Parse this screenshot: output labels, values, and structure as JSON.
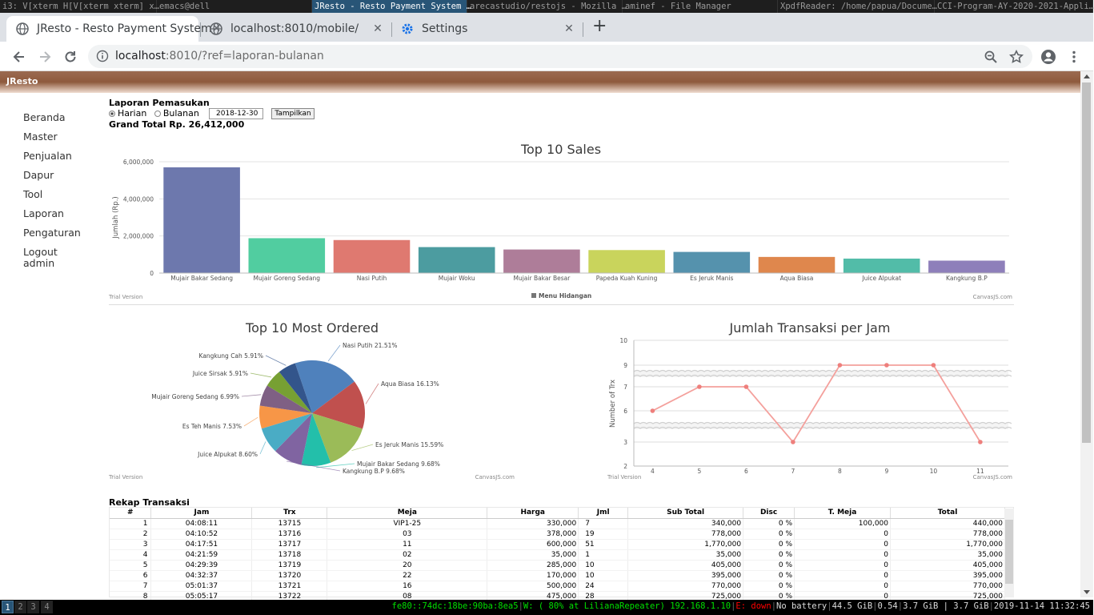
{
  "i3_windows": [
    {
      "title": "i3: V[xterm H[V[xterm xterm] x…",
      "active": false
    },
    {
      "title": "emacs@dell",
      "active": false
    },
    {
      "title": "JResto - Resto Payment System …",
      "active": true
    },
    {
      "title": "arecastudio/restojs - Mozilla …",
      "active": false
    },
    {
      "title": "aminef - File Manager",
      "active": false
    },
    {
      "title": "XpdfReader: /home/papua/Docume…",
      "active": false
    },
    {
      "title": "CCI-Program-AY-2020-2021-Appli…",
      "active": false
    }
  ],
  "tabs": [
    {
      "title": "JResto - Resto Payment System",
      "icon": "globe-icon",
      "active": true
    },
    {
      "title": "localhost:8010/mobile/",
      "icon": "globe-icon",
      "active": false
    },
    {
      "title": "Settings",
      "icon": "gear-icon",
      "active": false
    }
  ],
  "url": {
    "host": "localhost",
    "rest": ":8010/?ref=laporan-bulanan"
  },
  "app": {
    "brand": "JResto",
    "brand_color": "#8e5a3d"
  },
  "sidebar": [
    {
      "label": "Beranda"
    },
    {
      "label": "Master"
    },
    {
      "label": "Penjualan"
    },
    {
      "label": "Dapur"
    },
    {
      "label": "Tool"
    },
    {
      "label": "Laporan"
    },
    {
      "label": "Pengaturan"
    },
    {
      "label": "Logout admin"
    }
  ],
  "report": {
    "title": "Laporan Pemasukan",
    "radio_daily": "Harian",
    "radio_monthly": "Bulanan",
    "selected": "Harian",
    "date": "2018-12-30",
    "show_button": "Tampilkan",
    "grand_total": "Grand Total Rp. 26,412,000"
  },
  "chart_data": [
    {
      "type": "bar",
      "title": "Top 10 Sales",
      "ylabel": "Jumlah (Rp.)",
      "legend": "Menu Hidangan",
      "ylim": [
        0,
        6000000
      ],
      "yticks": [
        "0",
        "2,000,000",
        "4,000,000",
        "6,000,000"
      ],
      "categories": [
        "Mujair Bakar Sedang",
        "Mujair Goreng Sedang",
        "Nasi Putih",
        "Mujair Woku",
        "Mujair Bakar Besar",
        "Papeda Kuah Kuning",
        "Es Jeruk Manis",
        "Aqua Biasa",
        "Juice Alpukat",
        "Kangkung B.P"
      ],
      "values": [
        5700000,
        1880000,
        1780000,
        1400000,
        1270000,
        1240000,
        1140000,
        870000,
        780000,
        670000
      ],
      "colors": [
        "#6d78ad",
        "#51cda0",
        "#df7970",
        "#4c9ca0",
        "#ae7d99",
        "#c9d45c",
        "#5592ad",
        "#df874d",
        "#52bca8",
        "#8e7fba"
      ],
      "trial": "Trial Version",
      "credit": "CanvasJS.com"
    },
    {
      "type": "pie",
      "title": "Top 10 Most Ordered",
      "labels": [
        "Nasi Putih 21.51%",
        "Aqua Biasa 16.13%",
        "Es Jeruk Manis 15.59%",
        "Mujair Bakar Sedang 9.68%",
        "Kangkung B.P 9.68%",
        "Juice Alpukat 8.60%",
        "Es Teh Manis 7.53%",
        "Mujair Goreng Sedang 6.99%",
        "Juice Sirsak 5.91%",
        "Kangkung Cah 5.91%"
      ],
      "values": [
        21.51,
        16.13,
        15.59,
        9.68,
        9.68,
        8.6,
        7.53,
        6.99,
        5.91,
        5.91
      ],
      "colors": [
        "#4f81bc",
        "#c0504e",
        "#9bbb58",
        "#23bfaa",
        "#8064a1",
        "#4aacc5",
        "#f79647",
        "#7f6084",
        "#77a033",
        "#33558b"
      ],
      "trial": "Trial Version",
      "credit": "CanvasJS.com"
    },
    {
      "type": "line",
      "title": "Jumlah Transaksi per Jam",
      "ylabel": "Number of Trx",
      "x": [
        4,
        5,
        6,
        7,
        8,
        9,
        10,
        11
      ],
      "y": [
        6,
        7,
        7,
        3,
        9,
        9,
        9,
        3
      ],
      "xticks": [
        "4",
        "5",
        "6",
        "7",
        "8",
        "9",
        "10",
        "11"
      ],
      "yticks": [
        "2",
        "3",
        "6",
        "7",
        "9",
        "10"
      ],
      "color": "#f4a09c",
      "axis_breaks": true,
      "trial": "Trial Version",
      "credit": "CanvasJS.com"
    }
  ],
  "rekap": {
    "title": "Rekap Transaksi",
    "columns": [
      "#",
      "Jam",
      "Trx",
      "Meja",
      "Harga",
      "Jml",
      "Sub Total",
      "Disc",
      "T. Meja",
      "Total"
    ],
    "rows": [
      [
        "1",
        "04:08:11",
        "13715",
        "VIP1-25",
        "330,000",
        "7",
        "340,000",
        "0 %",
        "100,000",
        "440,000"
      ],
      [
        "2",
        "04:10:52",
        "13716",
        "03",
        "378,000",
        "19",
        "778,000",
        "0 %",
        "0",
        "778,000"
      ],
      [
        "3",
        "04:17:51",
        "13717",
        "11",
        "600,000",
        "51",
        "1,770,000",
        "0 %",
        "0",
        "1,770,000"
      ],
      [
        "4",
        "04:21:59",
        "13718",
        "02",
        "35,000",
        "1",
        "35,000",
        "0 %",
        "0",
        "35,000"
      ],
      [
        "5",
        "04:29:39",
        "13719",
        "20",
        "285,000",
        "10",
        "405,000",
        "0 %",
        "0",
        "405,000"
      ],
      [
        "6",
        "04:32:37",
        "13720",
        "22",
        "170,000",
        "10",
        "395,000",
        "0 %",
        "0",
        "395,000"
      ],
      [
        "7",
        "05:01:37",
        "13721",
        "16",
        "500,000",
        "24",
        "770,000",
        "0 %",
        "0",
        "770,000"
      ],
      [
        "8",
        "05:05:17",
        "13722",
        "08",
        "475,000",
        "28",
        "725,000",
        "0 %",
        "0",
        "725,000"
      ]
    ]
  },
  "workspaces": [
    "1",
    "2",
    "3",
    "4"
  ],
  "status": {
    "ipv6": "fe80::74dc:18be:90ba:8ea5",
    "wifi": "W: ( 80% at LilianaRepeater) 192.168.1.10",
    "eth": "E: down",
    "battery": "No battery",
    "disk": "44.5 GiB",
    "load": "0.54",
    "mem": "3.7 GiB | 3.7 GiB",
    "datetime": "2019-11-14 11:32:45"
  }
}
